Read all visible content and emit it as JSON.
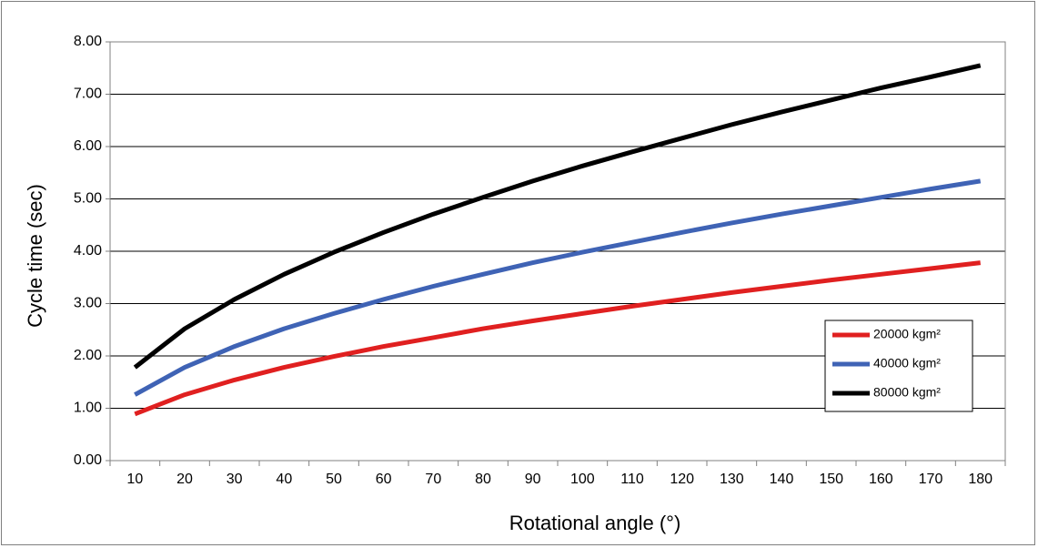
{
  "chart_data": {
    "type": "line",
    "xlabel": "Rotational angle (°)",
    "ylabel": "Cycle time (sec)",
    "categories": [
      "10",
      "20",
      "30",
      "40",
      "50",
      "60",
      "70",
      "80",
      "90",
      "100",
      "110",
      "120",
      "130",
      "140",
      "150",
      "160",
      "170",
      "180"
    ],
    "x": [
      10,
      20,
      30,
      40,
      50,
      60,
      70,
      80,
      90,
      100,
      110,
      120,
      130,
      140,
      150,
      160,
      170,
      180
    ],
    "ylim": [
      0,
      8
    ],
    "yticks": [
      "0.00",
      "1.00",
      "2.00",
      "3.00",
      "4.00",
      "5.00",
      "6.00",
      "7.00",
      "8.00"
    ],
    "grid": true,
    "legend_position": "bottom-right",
    "series": [
      {
        "name": "20000 kgm²",
        "color": "#e02020",
        "values": [
          0.89,
          1.26,
          1.54,
          1.78,
          1.99,
          2.18,
          2.35,
          2.52,
          2.67,
          2.81,
          2.95,
          3.08,
          3.21,
          3.33,
          3.45,
          3.56,
          3.67,
          3.78
        ]
      },
      {
        "name": "40000 kgm²",
        "color": "#3f63b5",
        "values": [
          1.26,
          1.78,
          2.18,
          2.52,
          2.81,
          3.08,
          3.33,
          3.56,
          3.78,
          3.98,
          4.17,
          4.36,
          4.54,
          4.71,
          4.87,
          5.03,
          5.19,
          5.34
        ]
      },
      {
        "name": "80000 kgm²",
        "color": "#000000",
        "values": [
          1.78,
          2.52,
          3.08,
          3.56,
          3.98,
          4.36,
          4.71,
          5.03,
          5.34,
          5.63,
          5.9,
          6.16,
          6.42,
          6.66,
          6.89,
          7.12,
          7.33,
          7.55
        ]
      }
    ]
  }
}
